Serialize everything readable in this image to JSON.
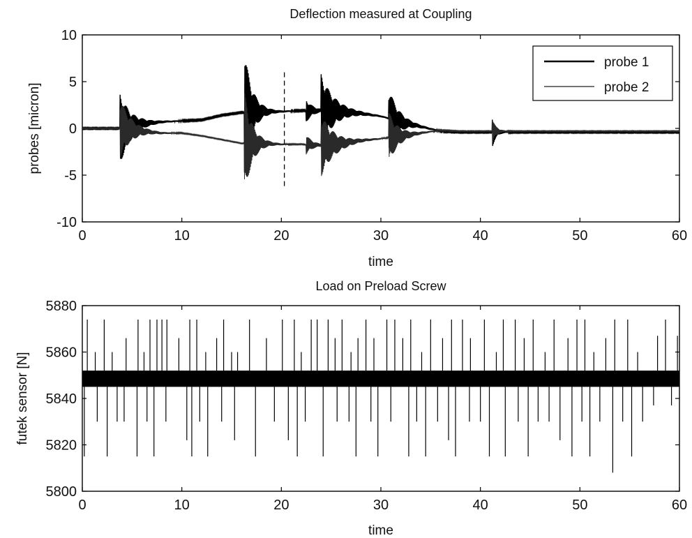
{
  "chart_data": [
    {
      "type": "line",
      "title": "Deflection measured at Coupling",
      "xlabel": "time",
      "ylabel": "probes [micron]",
      "xlim": [
        0,
        60
      ],
      "ylim": [
        -10,
        10
      ],
      "xticks": [
        "0",
        "10",
        "20",
        "30",
        "40",
        "50",
        "60"
      ],
      "yticks": [
        "10",
        "5",
        "0",
        "-5",
        "-10"
      ],
      "grid": false,
      "legend": {
        "placement": "top-right",
        "entries": [
          "probe 1",
          "probe 2"
        ]
      },
      "series": [
        {
          "name": "probe 1",
          "x": [
            0,
            3.8,
            6,
            8,
            10,
            12,
            14,
            16,
            18,
            20,
            22,
            24,
            26,
            28,
            30,
            32,
            34,
            36,
            38,
            40,
            42,
            45,
            50,
            55,
            60
          ],
          "y": [
            0,
            0,
            0.5,
            0.7,
            0.8,
            0.9,
            1.4,
            1.7,
            1.8,
            1.8,
            1.9,
            1.9,
            1.8,
            1.6,
            1.3,
            0.7,
            0.2,
            -0.3,
            -0.4,
            -0.4,
            -0.4,
            -0.4,
            -0.4,
            -0.4,
            -0.4
          ]
        },
        {
          "name": "probe 2",
          "x": [
            0,
            3.8,
            6,
            8,
            10,
            12,
            14,
            16,
            18,
            20,
            22,
            24,
            26,
            28,
            30,
            32,
            34,
            36,
            38,
            40,
            42,
            45,
            50,
            55,
            60
          ],
          "y": [
            0,
            0,
            -0.3,
            -0.5,
            -0.5,
            -0.8,
            -1.2,
            -1.6,
            -1.6,
            -1.7,
            -1.7,
            -1.8,
            -1.6,
            -1.3,
            -1.1,
            -0.8,
            -0.5,
            -0.2,
            -0.3,
            -0.3,
            -0.3,
            -0.3,
            -0.3,
            -0.3,
            -0.3
          ]
        }
      ],
      "bursts": [
        {
          "t": 3.8,
          "amp": 3.8,
          "decay": 2.5
        },
        {
          "t": 16.3,
          "amp": 6.5,
          "decay": 1.8
        },
        {
          "t": 22.5,
          "amp": 1.2,
          "decay": 1.5
        },
        {
          "t": 24.0,
          "amp": 3.8,
          "decay": 3.0
        },
        {
          "t": 30.8,
          "amp": 3.2,
          "decay": 2.2
        },
        {
          "t": 41.2,
          "amp": 1.6,
          "decay": 0.8
        }
      ],
      "marker_line": {
        "x": 20.3,
        "y_range": [
          -6.5,
          6
        ]
      }
    },
    {
      "type": "line",
      "title": "Load on Preload Screw",
      "xlabel": "time",
      "ylabel": "futek sensor [N]",
      "xlim": [
        0,
        60
      ],
      "ylim": [
        5800,
        5880
      ],
      "xticks": [
        "0",
        "10",
        "20",
        "30",
        "40",
        "50",
        "60"
      ],
      "yticks": [
        "5880",
        "5860",
        "5840",
        "5820",
        "5800"
      ],
      "grid": false,
      "baseline_band": [
        5845,
        5852
      ],
      "spikes_up": [
        0.5,
        1.3,
        2.2,
        3.0,
        4.4,
        5.6,
        6.2,
        6.8,
        7.5,
        8.0,
        8.5,
        9.7,
        10.8,
        11.5,
        12.4,
        13.5,
        14.2,
        15.0,
        15.6,
        16.8,
        18.5,
        20.1,
        21.3,
        22.0,
        23.0,
        23.6,
        24.7,
        25.4,
        26.1,
        27.0,
        27.7,
        28.5,
        29.3,
        30.6,
        31.4,
        32.2,
        33.0,
        34.1,
        35.0,
        36.2,
        37.1,
        38.2,
        39.0,
        40.4,
        41.6,
        42.3,
        43.5,
        44.4,
        45.3,
        46.5,
        47.4,
        48.8,
        49.7,
        50.5,
        51.4,
        52.6,
        53.5,
        54.8,
        55.8,
        57.8,
        58.6,
        59.8
      ],
      "spikes_up_values": [
        5874,
        5860,
        5874,
        5860,
        5866,
        5874,
        5860,
        5874,
        5874,
        5874,
        5874,
        5866,
        5874,
        5874,
        5860,
        5866,
        5874,
        5860,
        5860,
        5874,
        5866,
        5874,
        5874,
        5860,
        5874,
        5874,
        5874,
        5866,
        5874,
        5860,
        5866,
        5874,
        5866,
        5874,
        5874,
        5866,
        5874,
        5860,
        5874,
        5866,
        5874,
        5874,
        5866,
        5874,
        5860,
        5874,
        5874,
        5866,
        5874,
        5860,
        5874,
        5866,
        5874,
        5874,
        5860,
        5866,
        5874,
        5874,
        5860,
        5867,
        5874,
        5867
      ],
      "spikes_down": [
        0.2,
        1.5,
        2.5,
        3.5,
        4.2,
        5.5,
        6.5,
        7.2,
        8.4,
        10.5,
        11.0,
        11.8,
        12.6,
        14.0,
        15.3,
        17.4,
        19.3,
        20.7,
        21.6,
        22.4,
        24.2,
        25.6,
        26.8,
        27.5,
        29.0,
        29.7,
        31.0,
        32.8,
        33.6,
        34.5,
        35.7,
        36.8,
        37.5,
        38.9,
        40.0,
        40.9,
        42.5,
        43.8,
        44.8,
        45.8,
        46.9,
        48.0,
        49.2,
        50.2,
        51.0,
        52.0,
        53.3,
        54.3,
        55.2,
        56.3,
        57.4,
        59.2
      ],
      "spikes_down_values": [
        5815,
        5830,
        5815,
        5830,
        5830,
        5815,
        5830,
        5815,
        5830,
        5822,
        5815,
        5830,
        5815,
        5830,
        5822,
        5815,
        5830,
        5822,
        5815,
        5830,
        5815,
        5830,
        5830,
        5815,
        5830,
        5815,
        5830,
        5815,
        5830,
        5815,
        5830,
        5822,
        5815,
        5830,
        5830,
        5815,
        5815,
        5830,
        5815,
        5830,
        5830,
        5822,
        5815,
        5830,
        5815,
        5830,
        5808,
        5830,
        5815,
        5830,
        5837,
        5837
      ]
    }
  ]
}
